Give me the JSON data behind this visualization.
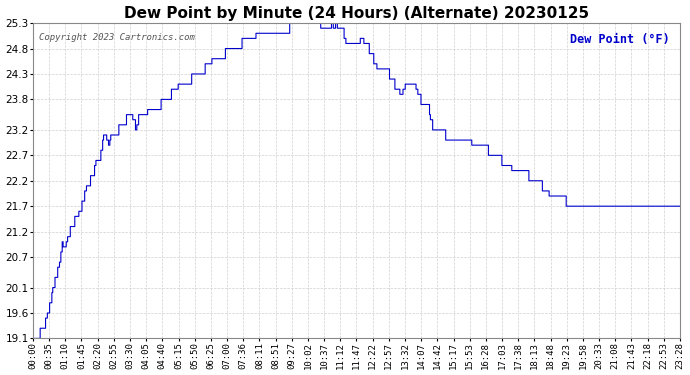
{
  "title": "Dew Point by Minute (24 Hours) (Alternate) 20230125",
  "title_fontsize": 11,
  "copyright_text": "Copyright 2023 Cartronics.com",
  "legend_text": "Dew Point (°F)",
  "line_color": "#0000cc",
  "background_color": "#ffffff",
  "grid_color": "#cccccc",
  "ylim": [
    19.1,
    25.3
  ],
  "yticks": [
    19.1,
    19.6,
    20.1,
    20.7,
    21.2,
    21.7,
    22.2,
    22.7,
    23.2,
    23.8,
    24.3,
    24.8,
    25.3
  ],
  "xlabel_fontsize": 6.5,
  "ylabel_fontsize": 7.5,
  "xtick_labels": [
    "00:00",
    "00:35",
    "01:10",
    "01:45",
    "02:20",
    "02:55",
    "03:30",
    "04:05",
    "04:40",
    "05:15",
    "05:50",
    "06:25",
    "07:00",
    "07:36",
    "08:11",
    "08:51",
    "09:27",
    "10:02",
    "10:37",
    "11:12",
    "11:47",
    "12:22",
    "12:57",
    "13:32",
    "14:07",
    "14:42",
    "15:17",
    "15:53",
    "16:28",
    "17:03",
    "17:38",
    "18:13",
    "18:48",
    "19:23",
    "19:58",
    "20:33",
    "21:08",
    "21:43",
    "22:18",
    "22:53",
    "23:28"
  ],
  "curve_keypoints": [
    [
      0,
      19.1
    ],
    [
      10,
      19.15
    ],
    [
      30,
      19.5
    ],
    [
      40,
      19.9
    ],
    [
      50,
      20.3
    ],
    [
      60,
      20.6
    ],
    [
      65,
      21.0
    ],
    [
      70,
      20.8
    ],
    [
      80,
      21.2
    ],
    [
      90,
      21.4
    ],
    [
      95,
      21.5
    ],
    [
      100,
      21.5
    ],
    [
      110,
      21.8
    ],
    [
      120,
      22.1
    ],
    [
      130,
      22.3
    ],
    [
      140,
      22.55
    ],
    [
      150,
      22.7
    ],
    [
      155,
      23.0
    ],
    [
      160,
      23.2
    ],
    [
      165,
      23.0
    ],
    [
      170,
      22.9
    ],
    [
      175,
      23.2
    ],
    [
      180,
      23.2
    ],
    [
      200,
      23.3
    ],
    [
      210,
      23.5
    ],
    [
      220,
      23.5
    ],
    [
      225,
      23.3
    ],
    [
      230,
      23.2
    ],
    [
      235,
      23.5
    ],
    [
      240,
      23.5
    ],
    [
      270,
      23.6
    ],
    [
      300,
      23.9
    ],
    [
      330,
      24.1
    ],
    [
      360,
      24.3
    ],
    [
      390,
      24.5
    ],
    [
      420,
      24.7
    ],
    [
      450,
      24.9
    ],
    [
      480,
      25.0
    ],
    [
      510,
      25.1
    ],
    [
      540,
      25.2
    ],
    [
      570,
      25.25
    ],
    [
      600,
      25.3
    ],
    [
      630,
      25.3
    ],
    [
      660,
      25.15
    ],
    [
      665,
      25.3
    ],
    [
      670,
      25.2
    ],
    [
      675,
      25.3
    ],
    [
      680,
      25.1
    ],
    [
      690,
      25.1
    ],
    [
      700,
      24.8
    ],
    [
      710,
      24.9
    ],
    [
      720,
      24.8
    ],
    [
      730,
      25.0
    ],
    [
      740,
      24.9
    ],
    [
      750,
      24.7
    ],
    [
      760,
      24.5
    ],
    [
      770,
      24.4
    ],
    [
      780,
      24.3
    ],
    [
      790,
      24.3
    ],
    [
      800,
      24.1
    ],
    [
      810,
      24.0
    ],
    [
      820,
      23.9
    ],
    [
      830,
      24.1
    ],
    [
      840,
      24.2
    ],
    [
      850,
      24.1
    ],
    [
      860,
      23.8
    ],
    [
      870,
      23.6
    ],
    [
      880,
      23.6
    ],
    [
      890,
      23.2
    ],
    [
      900,
      23.2
    ],
    [
      910,
      23.2
    ],
    [
      920,
      23.0
    ],
    [
      930,
      23.0
    ],
    [
      960,
      23.0
    ],
    [
      990,
      22.9
    ],
    [
      1020,
      22.7
    ],
    [
      1050,
      22.5
    ],
    [
      1080,
      22.4
    ],
    [
      1110,
      22.2
    ],
    [
      1140,
      22.0
    ],
    [
      1170,
      21.8
    ],
    [
      1200,
      21.7
    ],
    [
      1230,
      21.7
    ],
    [
      1260,
      21.7
    ],
    [
      1290,
      21.7
    ],
    [
      1320,
      21.7
    ],
    [
      1350,
      21.7
    ],
    [
      1380,
      21.7
    ],
    [
      1410,
      21.7
    ],
    [
      1439,
      21.7
    ]
  ]
}
